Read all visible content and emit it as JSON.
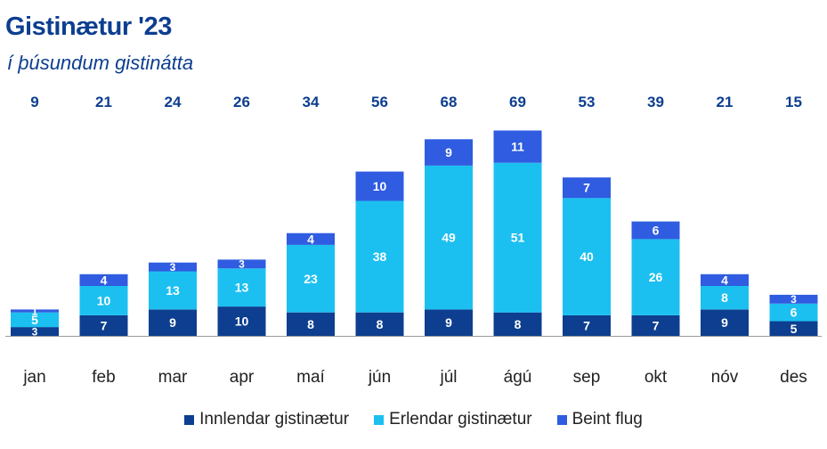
{
  "title": "Gistinætur '23",
  "subtitle": "í þúsundum gistinátta",
  "colors": {
    "domestic": "#0d3e8f",
    "foreign": "#1cc0f0",
    "direct": "#2f5ce0",
    "total_label": "#0d3e8f"
  },
  "chart_data": {
    "type": "bar",
    "stacked": true,
    "categories": [
      "jan",
      "feb",
      "mar",
      "apr",
      "maí",
      "jún",
      "júl",
      "ágú",
      "sep",
      "okt",
      "nóv",
      "des"
    ],
    "totals": [
      9,
      21,
      24,
      26,
      34,
      56,
      68,
      69,
      53,
      39,
      21,
      15
    ],
    "series": [
      {
        "name": "Innlendar gistinætur",
        "values": [
          3,
          7,
          9,
          10,
          8,
          8,
          9,
          8,
          7,
          7,
          9,
          5
        ]
      },
      {
        "name": "Erlendar gistinætur",
        "values": [
          5,
          10,
          13,
          13,
          23,
          38,
          49,
          51,
          40,
          26,
          8,
          6
        ]
      },
      {
        "name": "Beint flug",
        "values": [
          1,
          4,
          3,
          3,
          4,
          10,
          9,
          11,
          7,
          6,
          4,
          3
        ]
      }
    ],
    "ylim": [
      0,
      75
    ],
    "grid": false,
    "legend_position": "bottom"
  }
}
